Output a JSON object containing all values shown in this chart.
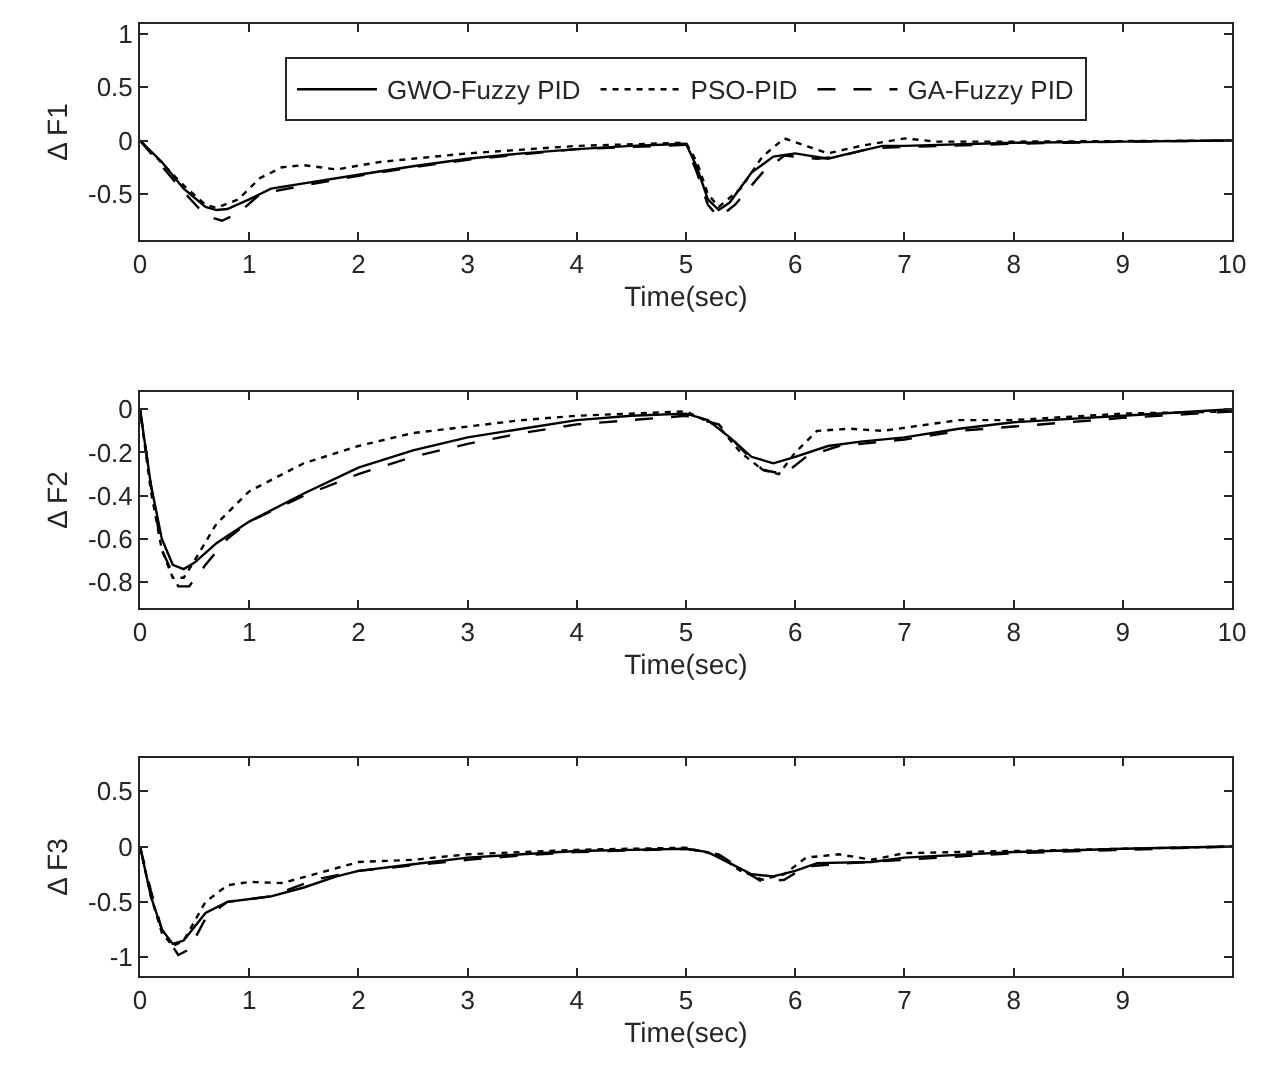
{
  "chart_data": [
    {
      "type": "line",
      "ylabel": "Δ F1",
      "xlabel": "Time(sec)",
      "xlim": [
        0,
        10
      ],
      "xticks": [
        0,
        1,
        2,
        3,
        4,
        5,
        6,
        7,
        8,
        9,
        10
      ],
      "ylim": [
        -0.93,
        1.09
      ],
      "yticks": [
        -0.5,
        0,
        0.5,
        1
      ],
      "legend": "top",
      "series": [
        {
          "name": "GWO-Fuzzy PID",
          "color": "#000000",
          "line_style": "solid",
          "x": [
            0,
            0.2,
            0.4,
            0.6,
            0.7,
            0.8,
            1.0,
            1.2,
            1.5,
            2,
            2.5,
            3,
            3.5,
            4,
            4.5,
            5,
            5.1,
            5.2,
            5.3,
            5.4,
            5.6,
            5.8,
            6,
            6.3,
            6.5,
            6.8,
            7,
            8,
            9,
            10
          ],
          "values": [
            0,
            -0.2,
            -0.45,
            -0.62,
            -0.65,
            -0.64,
            -0.55,
            -0.45,
            -0.4,
            -0.32,
            -0.24,
            -0.17,
            -0.12,
            -0.08,
            -0.05,
            -0.03,
            -0.25,
            -0.55,
            -0.65,
            -0.58,
            -0.3,
            -0.15,
            -0.12,
            -0.17,
            -0.12,
            -0.05,
            -0.05,
            -0.02,
            -0.01,
            0
          ]
        },
        {
          "name": "PSO-PID",
          "color": "#000000",
          "line_style": "dotted",
          "x": [
            0,
            0.4,
            0.6,
            0.7,
            0.9,
            1.1,
            1.3,
            1.5,
            1.8,
            2.2,
            3,
            4,
            5,
            5.1,
            5.2,
            5.3,
            5.5,
            5.7,
            5.9,
            6.1,
            6.3,
            6.6,
            7,
            7.3,
            8,
            10
          ],
          "values": [
            0,
            -0.42,
            -0.6,
            -0.63,
            -0.55,
            -0.35,
            -0.25,
            -0.23,
            -0.27,
            -0.2,
            -0.12,
            -0.05,
            -0.02,
            -0.2,
            -0.5,
            -0.62,
            -0.45,
            -0.15,
            0.02,
            -0.05,
            -0.12,
            -0.05,
            0.02,
            -0.01,
            -0.01,
            0
          ]
        },
        {
          "name": "GA-Fuzzy PID",
          "color": "#000000",
          "line_style": "dashed",
          "x": [
            0,
            0.4,
            0.6,
            0.75,
            0.9,
            1.1,
            1.5,
            2,
            2.5,
            3,
            3.5,
            4,
            5,
            5.1,
            5.2,
            5.3,
            5.45,
            5.7,
            5.9,
            6.2,
            6.4,
            6.7,
            7,
            8,
            9,
            10
          ],
          "values": [
            0,
            -0.48,
            -0.7,
            -0.75,
            -0.68,
            -0.5,
            -0.42,
            -0.33,
            -0.25,
            -0.18,
            -0.13,
            -0.08,
            -0.04,
            -0.3,
            -0.6,
            -0.72,
            -0.6,
            -0.3,
            -0.14,
            -0.17,
            -0.15,
            -0.07,
            -0.06,
            -0.03,
            -0.01,
            0
          ]
        }
      ]
    },
    {
      "type": "line",
      "ylabel": "Δ F2",
      "xlabel": "Time(sec)",
      "xlim": [
        0,
        10
      ],
      "xticks": [
        0,
        1,
        2,
        3,
        4,
        5,
        6,
        7,
        8,
        9,
        10
      ],
      "ylim": [
        -0.92,
        0.08
      ],
      "yticks": [
        -0.8,
        -0.6,
        -0.4,
        -0.2,
        0
      ],
      "series": [
        {
          "color": "#000000",
          "line_style": "solid",
          "x": [
            0,
            0.1,
            0.2,
            0.3,
            0.4,
            0.5,
            0.7,
            1,
            1.5,
            2,
            2.5,
            3,
            3.5,
            4,
            4.5,
            5,
            5.2,
            5.4,
            5.6,
            5.8,
            6,
            6.3,
            6.6,
            7,
            7.5,
            8,
            9,
            10
          ],
          "values": [
            0,
            -0.35,
            -0.6,
            -0.72,
            -0.74,
            -0.71,
            -0.62,
            -0.52,
            -0.39,
            -0.27,
            -0.19,
            -0.13,
            -0.09,
            -0.05,
            -0.03,
            -0.02,
            -0.05,
            -0.13,
            -0.22,
            -0.25,
            -0.22,
            -0.17,
            -0.15,
            -0.13,
            -0.09,
            -0.06,
            -0.03,
            0
          ]
        },
        {
          "color": "#000000",
          "line_style": "dotted",
          "x": [
            0,
            0.1,
            0.2,
            0.3,
            0.4,
            0.5,
            0.7,
            1,
            1.5,
            2,
            2.5,
            3,
            3.5,
            4,
            5,
            5.3,
            5.5,
            5.7,
            5.85,
            6,
            6.2,
            6.5,
            6.8,
            7.5,
            8,
            9,
            10
          ],
          "values": [
            0,
            -0.38,
            -0.65,
            -0.78,
            -0.78,
            -0.7,
            -0.53,
            -0.38,
            -0.25,
            -0.17,
            -0.11,
            -0.08,
            -0.05,
            -0.03,
            -0.01,
            -0.08,
            -0.2,
            -0.28,
            -0.3,
            -0.2,
            -0.1,
            -0.09,
            -0.1,
            -0.05,
            -0.05,
            -0.02,
            -0.01
          ]
        },
        {
          "color": "#000000",
          "line_style": "dashed",
          "x": [
            0,
            0.1,
            0.2,
            0.35,
            0.45,
            0.6,
            0.8,
            1,
            1.5,
            2,
            2.5,
            3,
            3.5,
            4,
            4.5,
            5,
            5.3,
            5.5,
            5.7,
            5.9,
            6.1,
            6.4,
            7,
            7.5,
            8,
            9,
            10
          ],
          "values": [
            0,
            -0.35,
            -0.65,
            -0.82,
            -0.82,
            -0.72,
            -0.6,
            -0.52,
            -0.4,
            -0.3,
            -0.22,
            -0.16,
            -0.11,
            -0.07,
            -0.05,
            -0.03,
            -0.07,
            -0.18,
            -0.28,
            -0.3,
            -0.22,
            -0.17,
            -0.14,
            -0.1,
            -0.08,
            -0.04,
            -0.01
          ]
        }
      ]
    },
    {
      "type": "line",
      "ylabel": "Δ F3",
      "xlabel": "Time(sec)",
      "xlim": [
        0,
        10
      ],
      "xticks": [
        0,
        1,
        2,
        3,
        4,
        5,
        6,
        7,
        8,
        9
      ],
      "ylim": [
        -1.17,
        0.8
      ],
      "yticks": [
        -1,
        -0.5,
        0,
        0.5
      ],
      "series": [
        {
          "color": "#000000",
          "line_style": "solid",
          "x": [
            0,
            0.1,
            0.2,
            0.3,
            0.4,
            0.6,
            0.8,
            1.2,
            1.5,
            1.8,
            2,
            2.5,
            3,
            3.5,
            4,
            4.5,
            5,
            5.2,
            5.4,
            5.6,
            5.8,
            6,
            6.2,
            6.7,
            7,
            8,
            9,
            10
          ],
          "values": [
            0,
            -0.45,
            -0.75,
            -0.88,
            -0.85,
            -0.6,
            -0.5,
            -0.45,
            -0.37,
            -0.27,
            -0.22,
            -0.16,
            -0.1,
            -0.07,
            -0.04,
            -0.03,
            -0.02,
            -0.05,
            -0.15,
            -0.25,
            -0.27,
            -0.22,
            -0.15,
            -0.14,
            -0.1,
            -0.05,
            -0.02,
            0
          ]
        },
        {
          "color": "#000000",
          "line_style": "dotted",
          "x": [
            0,
            0.1,
            0.2,
            0.3,
            0.4,
            0.6,
            0.8,
            1,
            1.3,
            1.6,
            2,
            2.5,
            3,
            4,
            5,
            5.3,
            5.5,
            5.7,
            5.9,
            6.1,
            6.4,
            6.7,
            7,
            8,
            9,
            10
          ],
          "values": [
            0,
            -0.45,
            -0.78,
            -0.9,
            -0.85,
            -0.5,
            -0.35,
            -0.32,
            -0.33,
            -0.25,
            -0.14,
            -0.12,
            -0.07,
            -0.03,
            -0.01,
            -0.08,
            -0.22,
            -0.3,
            -0.25,
            -0.1,
            -0.07,
            -0.12,
            -0.06,
            -0.04,
            -0.02,
            0
          ]
        },
        {
          "color": "#000000",
          "line_style": "dashed",
          "x": [
            0,
            0.1,
            0.2,
            0.35,
            0.45,
            0.6,
            0.8,
            1.2,
            1.6,
            2,
            2.5,
            3,
            3.5,
            4,
            5,
            5.3,
            5.5,
            5.7,
            5.9,
            6.1,
            6.5,
            7,
            8,
            9,
            10
          ],
          "values": [
            0,
            -0.4,
            -0.75,
            -0.98,
            -0.93,
            -0.65,
            -0.5,
            -0.45,
            -0.3,
            -0.22,
            -0.17,
            -0.12,
            -0.08,
            -0.05,
            -0.02,
            -0.07,
            -0.2,
            -0.32,
            -0.3,
            -0.18,
            -0.15,
            -0.12,
            -0.06,
            -0.03,
            0
          ]
        }
      ]
    }
  ]
}
